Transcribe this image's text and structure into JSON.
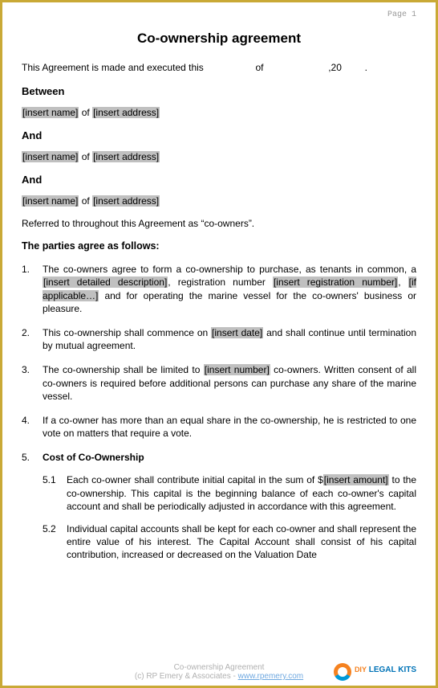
{
  "page_label": "Page 1",
  "title": "Co-ownership agreement",
  "intro": {
    "prefix": "This Agreement is made and executed this",
    "of": "of",
    "comma20": ",20",
    "period": "."
  },
  "between": "Between",
  "and": "And",
  "party": {
    "name_ph": "[insert name]",
    "of": " of ",
    "addr_ph": "[insert address]"
  },
  "referred": "Referred to throughout this Agreement as “co-owners”.",
  "agree_head": "The parties agree as follows:",
  "items": {
    "n1": "1.",
    "t1a": "The co-owners agree to form a co-ownership to purchase, as tenants in common, a ",
    "t1_ph1": "[insert detailed description]",
    "t1b": ", registration number ",
    "t1_ph2": "[insert registration number]",
    "t1c": ", ",
    "t1_ph3": "[if applicable…]",
    "t1d": " and for operating the marine vessel for the co-owners' business or pleasure.",
    "n2": "2.",
    "t2a": "This co-ownership shall commence on ",
    "t2_ph": "[insert date]",
    "t2b": " and shall continue until termination by mutual agreement.",
    "n3": "3.",
    "t3a": "The co-ownership shall be limited to ",
    "t3_ph": "[insert number]",
    "t3b": " co-owners.  Written consent of all co-owners is required before additional persons can purchase any share of the marine vessel.",
    "n4": "4.",
    "t4": "If a co-owner has more than an equal share in the co-ownership, he is restricted to one vote on matters that require a vote.",
    "n5": "5.",
    "t5_head": "Cost of Co-Ownership",
    "s51n": "5.1",
    "s51a": "Each co-owner shall contribute initial capital in the sum of $",
    "s51_ph": "[insert amount]",
    "s51b": " to the co-ownership.  This capital is the beginning balance of each co-owner's capital account and shall be periodically adjusted in accordance with this agreement.",
    "s52n": "5.2",
    "s52": "Individual capital accounts shall be kept for each co-owner and shall represent the entire value of his interest. The Capital Account shall consist of his capital contribution, increased or decreased on the Valuation Date"
  },
  "footer": {
    "line1": "Co-ownership Agreement",
    "line2a": "(c) RP Emery & Associates - ",
    "link": "www.rpemery.com"
  },
  "logo": {
    "diy": "DIY",
    "legal": " LEGAL KITS"
  },
  "colors": {
    "border": "#c9a936",
    "page_bg": "#ffffff",
    "placeholder_bg": "#c0c0c0",
    "footer_text": "#b0b0b0",
    "link": "#6fa8e0",
    "logo_orange": "#f58220",
    "logo_blue": "#0099d8"
  }
}
